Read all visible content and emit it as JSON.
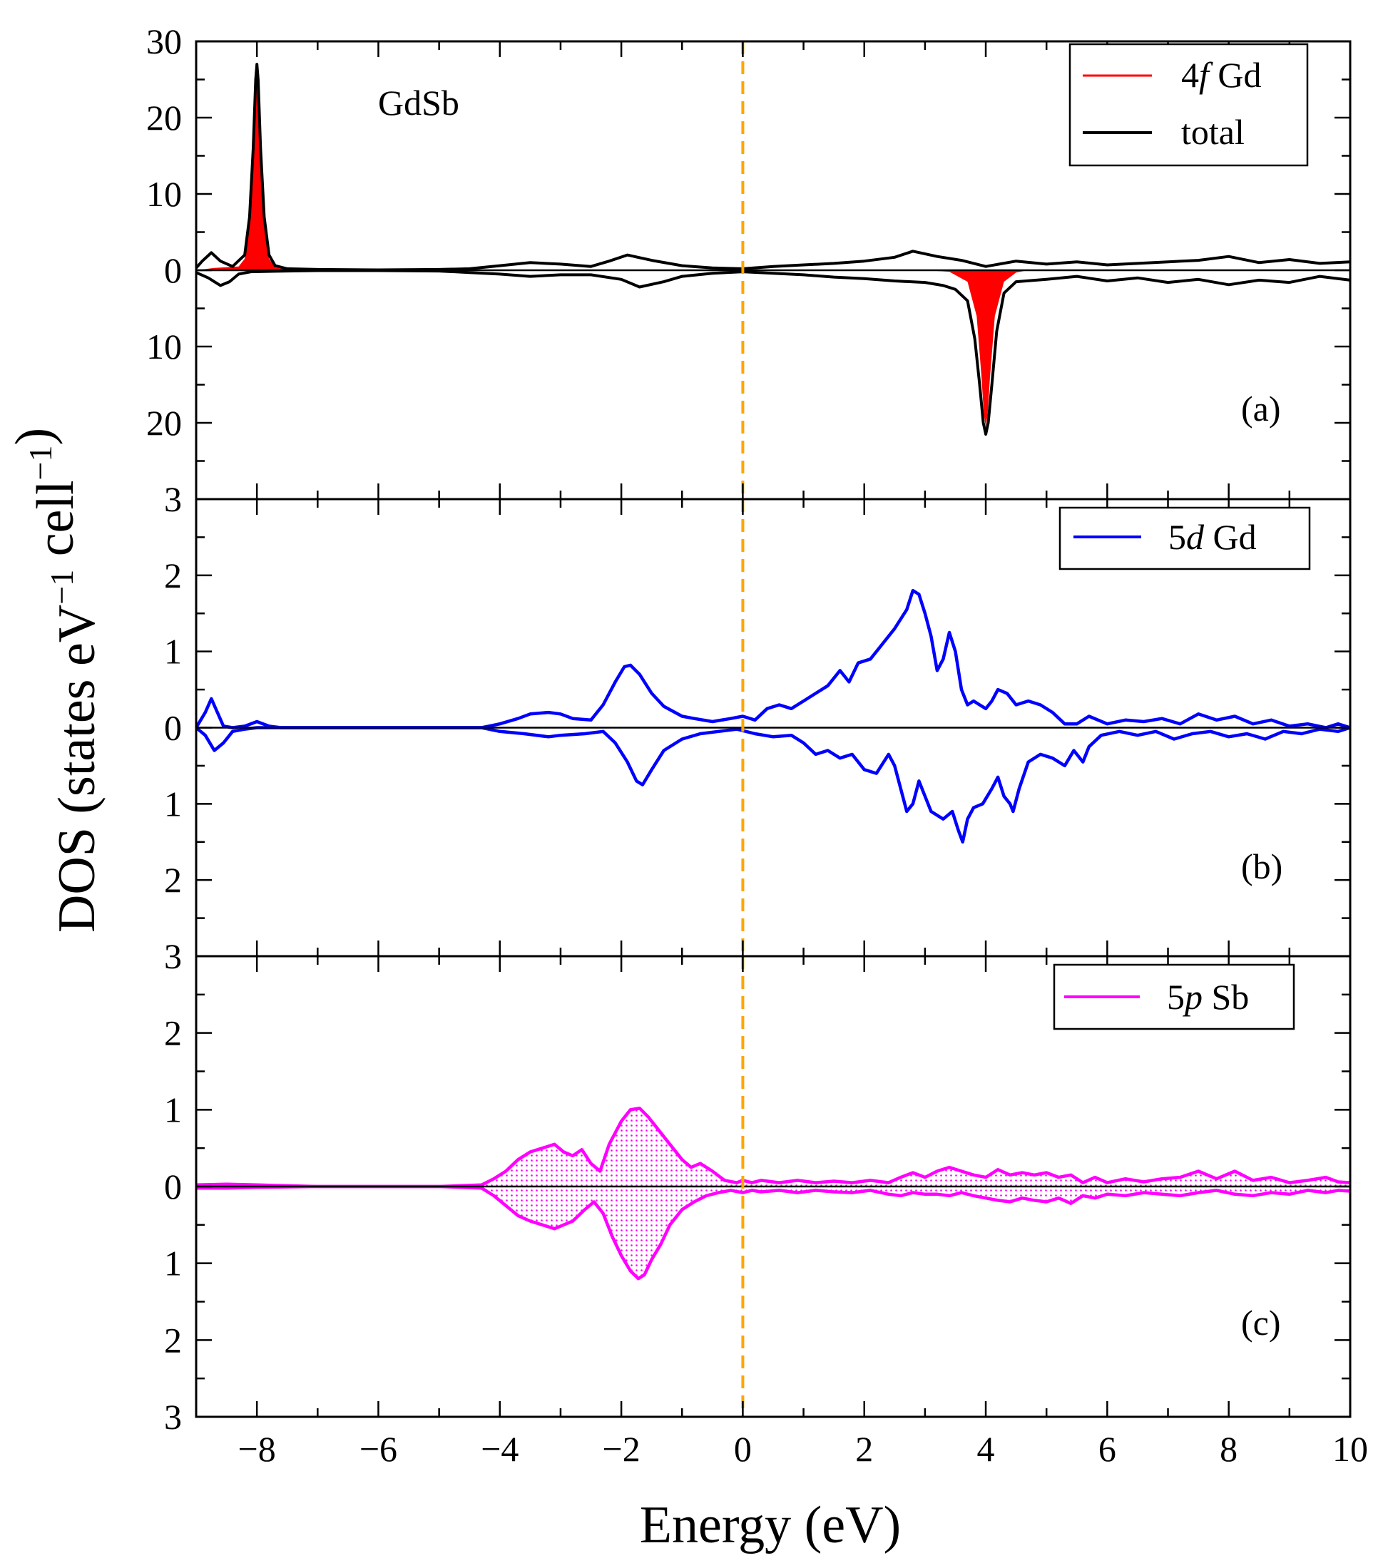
{
  "chart_data": [
    {
      "type": "line",
      "panel": "(a)",
      "annotation": "GdSb",
      "ylabel": "DOS (states eV⁻¹ cell⁻¹)",
      "xlabel": "Energy (eV)",
      "xlim": [
        -9,
        10
      ],
      "ylim": [
        -30,
        30
      ],
      "y_tick_values": [
        30,
        20,
        10,
        0,
        -10,
        -20
      ],
      "y_tick_labels": [
        "30",
        "20",
        "10",
        "0",
        "10",
        "20"
      ],
      "fermi_level": 0,
      "grid": false,
      "legend_placement": "top-right",
      "legend": [
        {
          "italic": "f",
          "prefix": "4",
          "suffix": " Gd",
          "color": "#ff0000",
          "series": "4f Gd"
        },
        {
          "text": "total",
          "color": "#000000",
          "series": "total"
        }
      ],
      "series": [
        {
          "name": "4f Gd",
          "color": "#ff0000",
          "filled": true,
          "spin": "up",
          "x": [
            -9.0,
            -8.7,
            -8.5,
            -8.3,
            -8.2,
            -8.12,
            -8.06,
            -8.02,
            -8.0,
            -7.98,
            -7.94,
            -7.88,
            -7.8,
            -7.7,
            -7.6,
            -7.4,
            -6.0,
            10.0
          ],
          "y": [
            0.0,
            0.3,
            0.4,
            0.5,
            1.5,
            6.0,
            15.0,
            24.0,
            26.5,
            24.0,
            15.0,
            6.0,
            1.5,
            0.4,
            0.2,
            0.0,
            0.0,
            0.0
          ]
        },
        {
          "name": "4f Gd",
          "color": "#ff0000",
          "filled": true,
          "spin": "down",
          "x": [
            -9.0,
            3.0,
            3.4,
            3.7,
            3.85,
            3.93,
            3.97,
            4.0,
            4.03,
            4.07,
            4.15,
            4.3,
            4.5,
            4.7,
            10.0
          ],
          "y": [
            0.0,
            0.0,
            -0.2,
            -1.5,
            -6.0,
            -14.0,
            -19.0,
            -20.5,
            -19.0,
            -14.0,
            -6.0,
            -1.5,
            -0.3,
            0.0,
            0.0
          ]
        },
        {
          "name": "total",
          "color": "#000000",
          "spin": "up",
          "x": [
            -9.0,
            -8.9,
            -8.75,
            -8.6,
            -8.4,
            -8.2,
            -8.12,
            -8.06,
            -8.02,
            -8.0,
            -7.98,
            -7.94,
            -7.88,
            -7.8,
            -7.7,
            -7.5,
            -7.0,
            -6.0,
            -5.0,
            -4.5,
            -4.0,
            -3.5,
            -3.0,
            -2.5,
            -2.2,
            -1.9,
            -1.5,
            -1.0,
            -0.5,
            0.0,
            0.5,
            1.0,
            1.5,
            2.0,
            2.5,
            2.8,
            3.2,
            3.6,
            4.0,
            4.5,
            5.0,
            5.5,
            6.0,
            6.5,
            7.0,
            7.5,
            8.0,
            8.5,
            9.0,
            9.5,
            10.0
          ],
          "y": [
            0.3,
            1.2,
            2.3,
            1.2,
            0.5,
            2.0,
            7.0,
            16.0,
            25.0,
            27.0,
            25.0,
            16.0,
            7.0,
            2.0,
            0.6,
            0.2,
            0.1,
            0.05,
            0.1,
            0.2,
            0.6,
            1.0,
            0.8,
            0.5,
            1.2,
            2.0,
            1.3,
            0.6,
            0.3,
            0.2,
            0.5,
            0.7,
            0.9,
            1.2,
            1.7,
            2.5,
            1.8,
            1.3,
            0.5,
            1.2,
            0.8,
            1.1,
            0.7,
            0.9,
            1.1,
            1.3,
            1.8,
            1.0,
            1.4,
            0.9,
            1.1
          ]
        },
        {
          "name": "total",
          "color": "#000000",
          "spin": "down",
          "x": [
            -9.0,
            -8.8,
            -8.6,
            -8.45,
            -8.3,
            -8.1,
            -7.5,
            -7.0,
            -6.0,
            -5.0,
            -4.5,
            -4.0,
            -3.5,
            -3.0,
            -2.5,
            -2.0,
            -1.7,
            -1.3,
            -1.0,
            -0.5,
            0.0,
            0.5,
            1.0,
            1.5,
            2.0,
            2.5,
            3.0,
            3.3,
            3.5,
            3.7,
            3.82,
            3.9,
            3.96,
            4.0,
            4.04,
            4.1,
            4.18,
            4.3,
            4.5,
            5.0,
            5.5,
            6.0,
            6.5,
            7.0,
            7.5,
            8.0,
            8.5,
            9.0,
            9.5,
            10.0
          ],
          "y": [
            -0.3,
            -1.0,
            -2.0,
            -1.5,
            -0.5,
            -0.2,
            -0.1,
            -0.05,
            -0.05,
            -0.1,
            -0.3,
            -0.5,
            -0.8,
            -0.6,
            -0.6,
            -1.2,
            -2.2,
            -1.5,
            -0.8,
            -0.4,
            -0.2,
            -0.4,
            -0.6,
            -0.9,
            -1.1,
            -1.4,
            -1.6,
            -2.0,
            -2.5,
            -4.0,
            -9.0,
            -15.0,
            -20.0,
            -21.5,
            -20.0,
            -15.0,
            -8.0,
            -3.0,
            -1.5,
            -1.2,
            -0.8,
            -1.4,
            -1.0,
            -1.6,
            -1.2,
            -1.9,
            -1.3,
            -1.6,
            -0.8,
            -1.3
          ]
        }
      ]
    },
    {
      "type": "line",
      "panel": "(b)",
      "xlim": [
        -9,
        10
      ],
      "ylim": [
        -3,
        3
      ],
      "y_tick_values": [
        3,
        2,
        1,
        0,
        -1,
        -2
      ],
      "y_tick_labels": [
        "3",
        "2",
        "1",
        "0",
        "1",
        "2"
      ],
      "fermi_level": 0,
      "grid": false,
      "legend_placement": "top-right",
      "legend": [
        {
          "italic": "d",
          "prefix": "5",
          "suffix": " Gd",
          "color": "#0000ff",
          "series": "5d Gd"
        }
      ],
      "series": [
        {
          "name": "5d Gd",
          "color": "#0000ff",
          "spin": "up",
          "x": [
            -9.0,
            -8.85,
            -8.75,
            -8.65,
            -8.55,
            -8.4,
            -8.2,
            -8.0,
            -7.8,
            -7.6,
            -7.0,
            -6.0,
            -5.0,
            -4.3,
            -4.0,
            -3.7,
            -3.5,
            -3.2,
            -3.0,
            -2.8,
            -2.5,
            -2.3,
            -2.1,
            -1.95,
            -1.85,
            -1.7,
            -1.5,
            -1.3,
            -1.0,
            -0.8,
            -0.5,
            -0.2,
            0.0,
            0.2,
            0.4,
            0.6,
            0.8,
            1.0,
            1.2,
            1.4,
            1.6,
            1.75,
            1.9,
            2.1,
            2.3,
            2.5,
            2.7,
            2.8,
            2.9,
            3.0,
            3.1,
            3.2,
            3.3,
            3.4,
            3.5,
            3.6,
            3.7,
            3.8,
            3.9,
            4.0,
            4.1,
            4.2,
            4.35,
            4.5,
            4.7,
            4.9,
            5.1,
            5.3,
            5.5,
            5.7,
            6.0,
            6.3,
            6.6,
            6.9,
            7.2,
            7.5,
            7.8,
            8.1,
            8.4,
            8.7,
            9.0,
            9.3,
            9.6,
            9.8,
            10.0
          ],
          "y": [
            0.0,
            0.2,
            0.38,
            0.2,
            0.02,
            0.0,
            0.02,
            0.08,
            0.02,
            0.0,
            0.0,
            0.0,
            0.0,
            0.0,
            0.05,
            0.12,
            0.18,
            0.2,
            0.18,
            0.12,
            0.1,
            0.3,
            0.6,
            0.8,
            0.82,
            0.7,
            0.45,
            0.28,
            0.15,
            0.12,
            0.08,
            0.12,
            0.15,
            0.1,
            0.25,
            0.3,
            0.25,
            0.35,
            0.45,
            0.55,
            0.75,
            0.6,
            0.85,
            0.9,
            1.1,
            1.3,
            1.55,
            1.8,
            1.75,
            1.5,
            1.2,
            0.75,
            0.9,
            1.25,
            1.0,
            0.5,
            0.3,
            0.35,
            0.3,
            0.25,
            0.35,
            0.5,
            0.45,
            0.3,
            0.35,
            0.3,
            0.2,
            0.05,
            0.05,
            0.15,
            0.05,
            0.1,
            0.08,
            0.12,
            0.05,
            0.18,
            0.1,
            0.15,
            0.05,
            0.1,
            0.02,
            0.05,
            0.0,
            0.05,
            0.0
          ]
        },
        {
          "name": "5d Gd",
          "color": "#0000ff",
          "spin": "down",
          "x": [
            -9.0,
            -8.85,
            -8.7,
            -8.55,
            -8.4,
            -8.2,
            -8.0,
            -7.6,
            -7.0,
            -6.0,
            -5.0,
            -4.3,
            -4.0,
            -3.6,
            -3.2,
            -3.0,
            -2.6,
            -2.3,
            -2.1,
            -1.9,
            -1.75,
            -1.65,
            -1.5,
            -1.3,
            -1.0,
            -0.7,
            -0.4,
            -0.1,
            0.2,
            0.5,
            0.8,
            1.0,
            1.2,
            1.4,
            1.6,
            1.8,
            2.0,
            2.2,
            2.4,
            2.5,
            2.6,
            2.7,
            2.8,
            2.9,
            3.0,
            3.1,
            3.3,
            3.45,
            3.55,
            3.62,
            3.7,
            3.8,
            3.95,
            4.1,
            4.2,
            4.3,
            4.4,
            4.45,
            4.55,
            4.7,
            4.9,
            5.1,
            5.3,
            5.45,
            5.6,
            5.7,
            5.9,
            6.2,
            6.5,
            6.8,
            7.1,
            7.4,
            7.7,
            8.0,
            8.3,
            8.6,
            8.9,
            9.2,
            9.5,
            9.8,
            10.0
          ],
          "y": [
            0.0,
            -0.1,
            -0.3,
            -0.2,
            -0.05,
            -0.02,
            0.0,
            0.0,
            0.0,
            0.0,
            0.0,
            0.0,
            -0.05,
            -0.08,
            -0.12,
            -0.1,
            -0.08,
            -0.05,
            -0.2,
            -0.45,
            -0.7,
            -0.75,
            -0.55,
            -0.3,
            -0.15,
            -0.08,
            -0.05,
            -0.02,
            -0.08,
            -0.12,
            -0.1,
            -0.2,
            -0.35,
            -0.3,
            -0.4,
            -0.35,
            -0.55,
            -0.6,
            -0.35,
            -0.5,
            -0.8,
            -1.1,
            -1.0,
            -0.7,
            -0.9,
            -1.1,
            -1.2,
            -1.1,
            -1.35,
            -1.5,
            -1.2,
            -1.05,
            -1.0,
            -0.8,
            -0.65,
            -0.9,
            -1.0,
            -1.1,
            -0.8,
            -0.45,
            -0.35,
            -0.4,
            -0.5,
            -0.3,
            -0.45,
            -0.25,
            -0.1,
            -0.05,
            -0.1,
            -0.05,
            -0.15,
            -0.08,
            -0.05,
            -0.12,
            -0.08,
            -0.15,
            -0.05,
            -0.08,
            -0.02,
            -0.05,
            0.0
          ]
        }
      ]
    },
    {
      "type": "area",
      "panel": "(c)",
      "xlim": [
        -9,
        10
      ],
      "ylim": [
        -3,
        3
      ],
      "y_tick_values": [
        3,
        2,
        1,
        0,
        -1,
        -2
      ],
      "y_tick_labels": [
        "3",
        "2",
        "1",
        "0",
        "1",
        "2"
      ],
      "fermi_level": 0,
      "grid": false,
      "legend_placement": "top-right",
      "legend": [
        {
          "italic": "p",
          "prefix": "5",
          "suffix": " Sb",
          "color": "#ff00ff",
          "series": "5p Sb"
        }
      ],
      "series": [
        {
          "name": "5p Sb",
          "color": "#ff00ff",
          "filled": true,
          "pattern": "dotted",
          "spin": "up",
          "x": [
            -9.0,
            -8.5,
            -8.0,
            -7.0,
            -6.0,
            -5.0,
            -4.3,
            -4.1,
            -3.9,
            -3.7,
            -3.5,
            -3.3,
            -3.1,
            -2.95,
            -2.8,
            -2.65,
            -2.5,
            -2.35,
            -2.2,
            -2.0,
            -1.85,
            -1.7,
            -1.55,
            -1.4,
            -1.2,
            -1.0,
            -0.85,
            -0.7,
            -0.5,
            -0.3,
            -0.1,
            0.0,
            0.15,
            0.3,
            0.6,
            0.9,
            1.2,
            1.5,
            1.8,
            2.1,
            2.4,
            2.6,
            2.8,
            3.0,
            3.2,
            3.4,
            3.6,
            3.8,
            4.0,
            4.2,
            4.4,
            4.6,
            4.8,
            5.0,
            5.2,
            5.4,
            5.6,
            5.8,
            6.0,
            6.3,
            6.6,
            6.9,
            7.2,
            7.5,
            7.8,
            8.1,
            8.4,
            8.7,
            9.0,
            9.3,
            9.6,
            9.8,
            10.0
          ],
          "y": [
            0.02,
            0.03,
            0.02,
            0.0,
            0.0,
            0.0,
            0.02,
            0.1,
            0.2,
            0.35,
            0.45,
            0.5,
            0.55,
            0.45,
            0.4,
            0.48,
            0.3,
            0.2,
            0.55,
            0.85,
            1.0,
            1.02,
            0.9,
            0.75,
            0.55,
            0.35,
            0.25,
            0.3,
            0.2,
            0.08,
            0.05,
            0.08,
            0.05,
            0.08,
            0.05,
            0.08,
            0.05,
            0.07,
            0.05,
            0.08,
            0.05,
            0.12,
            0.18,
            0.12,
            0.2,
            0.25,
            0.2,
            0.15,
            0.12,
            0.22,
            0.15,
            0.18,
            0.15,
            0.18,
            0.12,
            0.15,
            0.05,
            0.12,
            0.05,
            0.1,
            0.06,
            0.1,
            0.12,
            0.2,
            0.1,
            0.2,
            0.08,
            0.12,
            0.05,
            0.08,
            0.12,
            0.06,
            0.05
          ]
        },
        {
          "name": "5p Sb",
          "color": "#ff00ff",
          "filled": true,
          "pattern": "dotted",
          "spin": "down",
          "x": [
            -9.0,
            -8.5,
            -8.0,
            -7.0,
            -6.0,
            -5.0,
            -4.3,
            -4.1,
            -3.9,
            -3.7,
            -3.5,
            -3.3,
            -3.1,
            -2.95,
            -2.8,
            -2.6,
            -2.45,
            -2.3,
            -2.15,
            -2.0,
            -1.85,
            -1.72,
            -1.62,
            -1.5,
            -1.35,
            -1.2,
            -1.0,
            -0.8,
            -0.6,
            -0.4,
            -0.2,
            0.0,
            0.15,
            0.3,
            0.6,
            0.9,
            1.2,
            1.5,
            1.8,
            2.1,
            2.4,
            2.6,
            2.8,
            3.0,
            3.2,
            3.4,
            3.6,
            3.8,
            4.0,
            4.2,
            4.4,
            4.6,
            4.8,
            5.0,
            5.2,
            5.4,
            5.6,
            5.8,
            6.0,
            6.3,
            6.6,
            6.9,
            7.2,
            7.5,
            7.8,
            8.1,
            8.4,
            8.7,
            9.0,
            9.3,
            9.6,
            9.8,
            10.0
          ],
          "y": [
            -0.02,
            -0.02,
            -0.01,
            0.0,
            0.0,
            0.0,
            -0.02,
            -0.12,
            -0.25,
            -0.38,
            -0.45,
            -0.5,
            -0.55,
            -0.5,
            -0.45,
            -0.3,
            -0.2,
            -0.35,
            -0.65,
            -0.9,
            -1.1,
            -1.2,
            -1.15,
            -0.95,
            -0.75,
            -0.5,
            -0.3,
            -0.2,
            -0.12,
            -0.08,
            -0.05,
            -0.08,
            -0.05,
            -0.07,
            -0.05,
            -0.08,
            -0.05,
            -0.07,
            -0.08,
            -0.05,
            -0.1,
            -0.12,
            -0.08,
            -0.1,
            -0.1,
            -0.12,
            -0.08,
            -0.12,
            -0.15,
            -0.18,
            -0.2,
            -0.15,
            -0.18,
            -0.2,
            -0.15,
            -0.22,
            -0.12,
            -0.15,
            -0.1,
            -0.12,
            -0.08,
            -0.1,
            -0.12,
            -0.08,
            -0.05,
            -0.1,
            -0.12,
            -0.08,
            -0.1,
            -0.05,
            -0.08,
            -0.05,
            -0.06
          ]
        }
      ]
    }
  ]
}
